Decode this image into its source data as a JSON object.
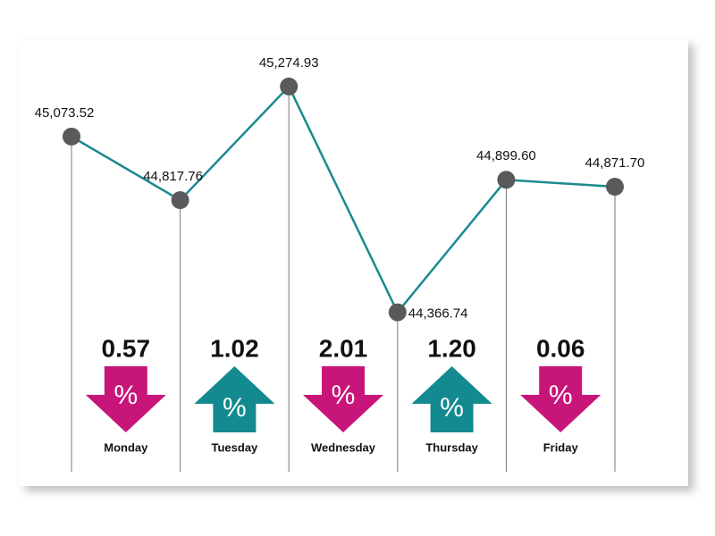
{
  "chart_data": {
    "type": "line",
    "values": [
      45073.52,
      44817.76,
      45274.93,
      44366.74,
      44899.6,
      44871.7
    ],
    "value_labels": [
      "45,073.52",
      "44,817.76",
      "45,274.93",
      "44,366.74",
      "44,899.60",
      "44,871.70"
    ],
    "color": "#1a8a90",
    "marker_color": "#5a5a5c",
    "ylim": [
      44200,
      45400
    ],
    "changes": {
      "days": [
        "Monday",
        "Tuesday",
        "Wednesday",
        "Thursday",
        "Friday"
      ],
      "values": [
        0.57,
        1.02,
        2.01,
        1.2,
        0.06
      ],
      "value_labels": [
        "0.57",
        "1.02",
        "2.01",
        "1.20",
        "0.06"
      ],
      "directions": [
        "down",
        "up",
        "down",
        "up",
        "down"
      ],
      "symbol": "%",
      "colors": {
        "down": "#c8157a",
        "up": "#138a8f"
      }
    }
  }
}
